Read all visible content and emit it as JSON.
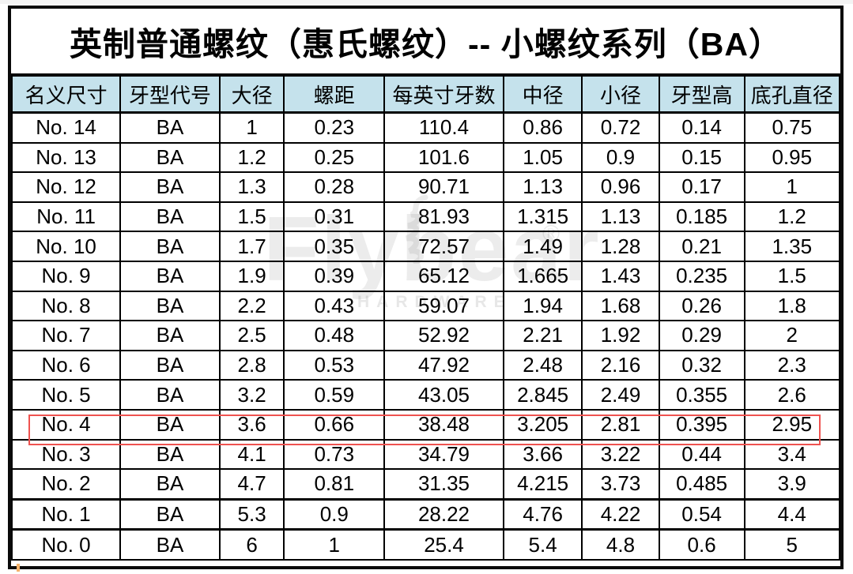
{
  "chart_data": {
    "type": "table",
    "title": "英制普通螺纹（惠氏螺纹）-- 小螺纹系列（BA）",
    "columns": [
      "名义尺寸",
      "牙型代号",
      "大径",
      "螺距",
      "每英寸牙数",
      "中径",
      "小径",
      "牙型高",
      "底孔直径"
    ],
    "rows": [
      [
        "No. 14",
        "BA",
        "1",
        "0.23",
        "110.4",
        "0.86",
        "0.72",
        "0.14",
        "0.75"
      ],
      [
        "No. 13",
        "BA",
        "1.2",
        "0.25",
        "101.6",
        "1.05",
        "0.9",
        "0.15",
        "0.95"
      ],
      [
        "No. 12",
        "BA",
        "1.3",
        "0.28",
        "90.71",
        "1.13",
        "0.96",
        "0.17",
        "1"
      ],
      [
        "No. 11",
        "BA",
        "1.5",
        "0.31",
        "81.93",
        "1.315",
        "1.13",
        "0.185",
        "1.2"
      ],
      [
        "No. 10",
        "BA",
        "1.7",
        "0.35",
        "72.57",
        "1.49",
        "1.28",
        "0.21",
        "1.35"
      ],
      [
        "No. 9",
        "BA",
        "1.9",
        "0.39",
        "65.12",
        "1.665",
        "1.43",
        "0.235",
        "1.5"
      ],
      [
        "No. 8",
        "BA",
        "2.2",
        "0.43",
        "59.07",
        "1.94",
        "1.68",
        "0.26",
        "1.8"
      ],
      [
        "No. 7",
        "BA",
        "2.5",
        "0.48",
        "52.92",
        "2.21",
        "1.92",
        "0.29",
        "2"
      ],
      [
        "No. 6",
        "BA",
        "2.8",
        "0.53",
        "47.92",
        "2.48",
        "2.16",
        "0.32",
        "2.3"
      ],
      [
        "No. 5",
        "BA",
        "3.2",
        "0.59",
        "43.05",
        "2.845",
        "2.49",
        "0.355",
        "2.6"
      ],
      [
        "No. 4",
        "BA",
        "3.6",
        "0.66",
        "38.48",
        "3.205",
        "2.81",
        "0.395",
        "2.95"
      ],
      [
        "No. 3",
        "BA",
        "4.1",
        "0.73",
        "34.79",
        "3.66",
        "3.22",
        "0.44",
        "3.4"
      ],
      [
        "No. 2",
        "BA",
        "4.7",
        "0.81",
        "31.35",
        "4.215",
        "3.73",
        "0.485",
        "3.9"
      ],
      [
        "No. 1",
        "BA",
        "5.3",
        "0.9",
        "28.22",
        "4.76",
        "4.22",
        "0.54",
        "4.4"
      ],
      [
        "No. 0",
        "BA",
        "6",
        "1",
        "25.4",
        "5.4",
        "4.8",
        "0.6",
        "5"
      ]
    ],
    "highlighted_row": "No. 4",
    "layout_hints": {
      "header_style": "light-blue band",
      "grid": "on",
      "highlight": "red outline around row No. 4"
    }
  },
  "watermark": {
    "brand": "Flybear",
    "registered": "®",
    "sub": "HARDWARE"
  },
  "colors": {
    "header_bg": "#c5e2ec",
    "border": "#000000",
    "highlight": "#ef5350",
    "watermark": "rgba(70,70,70,0.10)"
  }
}
